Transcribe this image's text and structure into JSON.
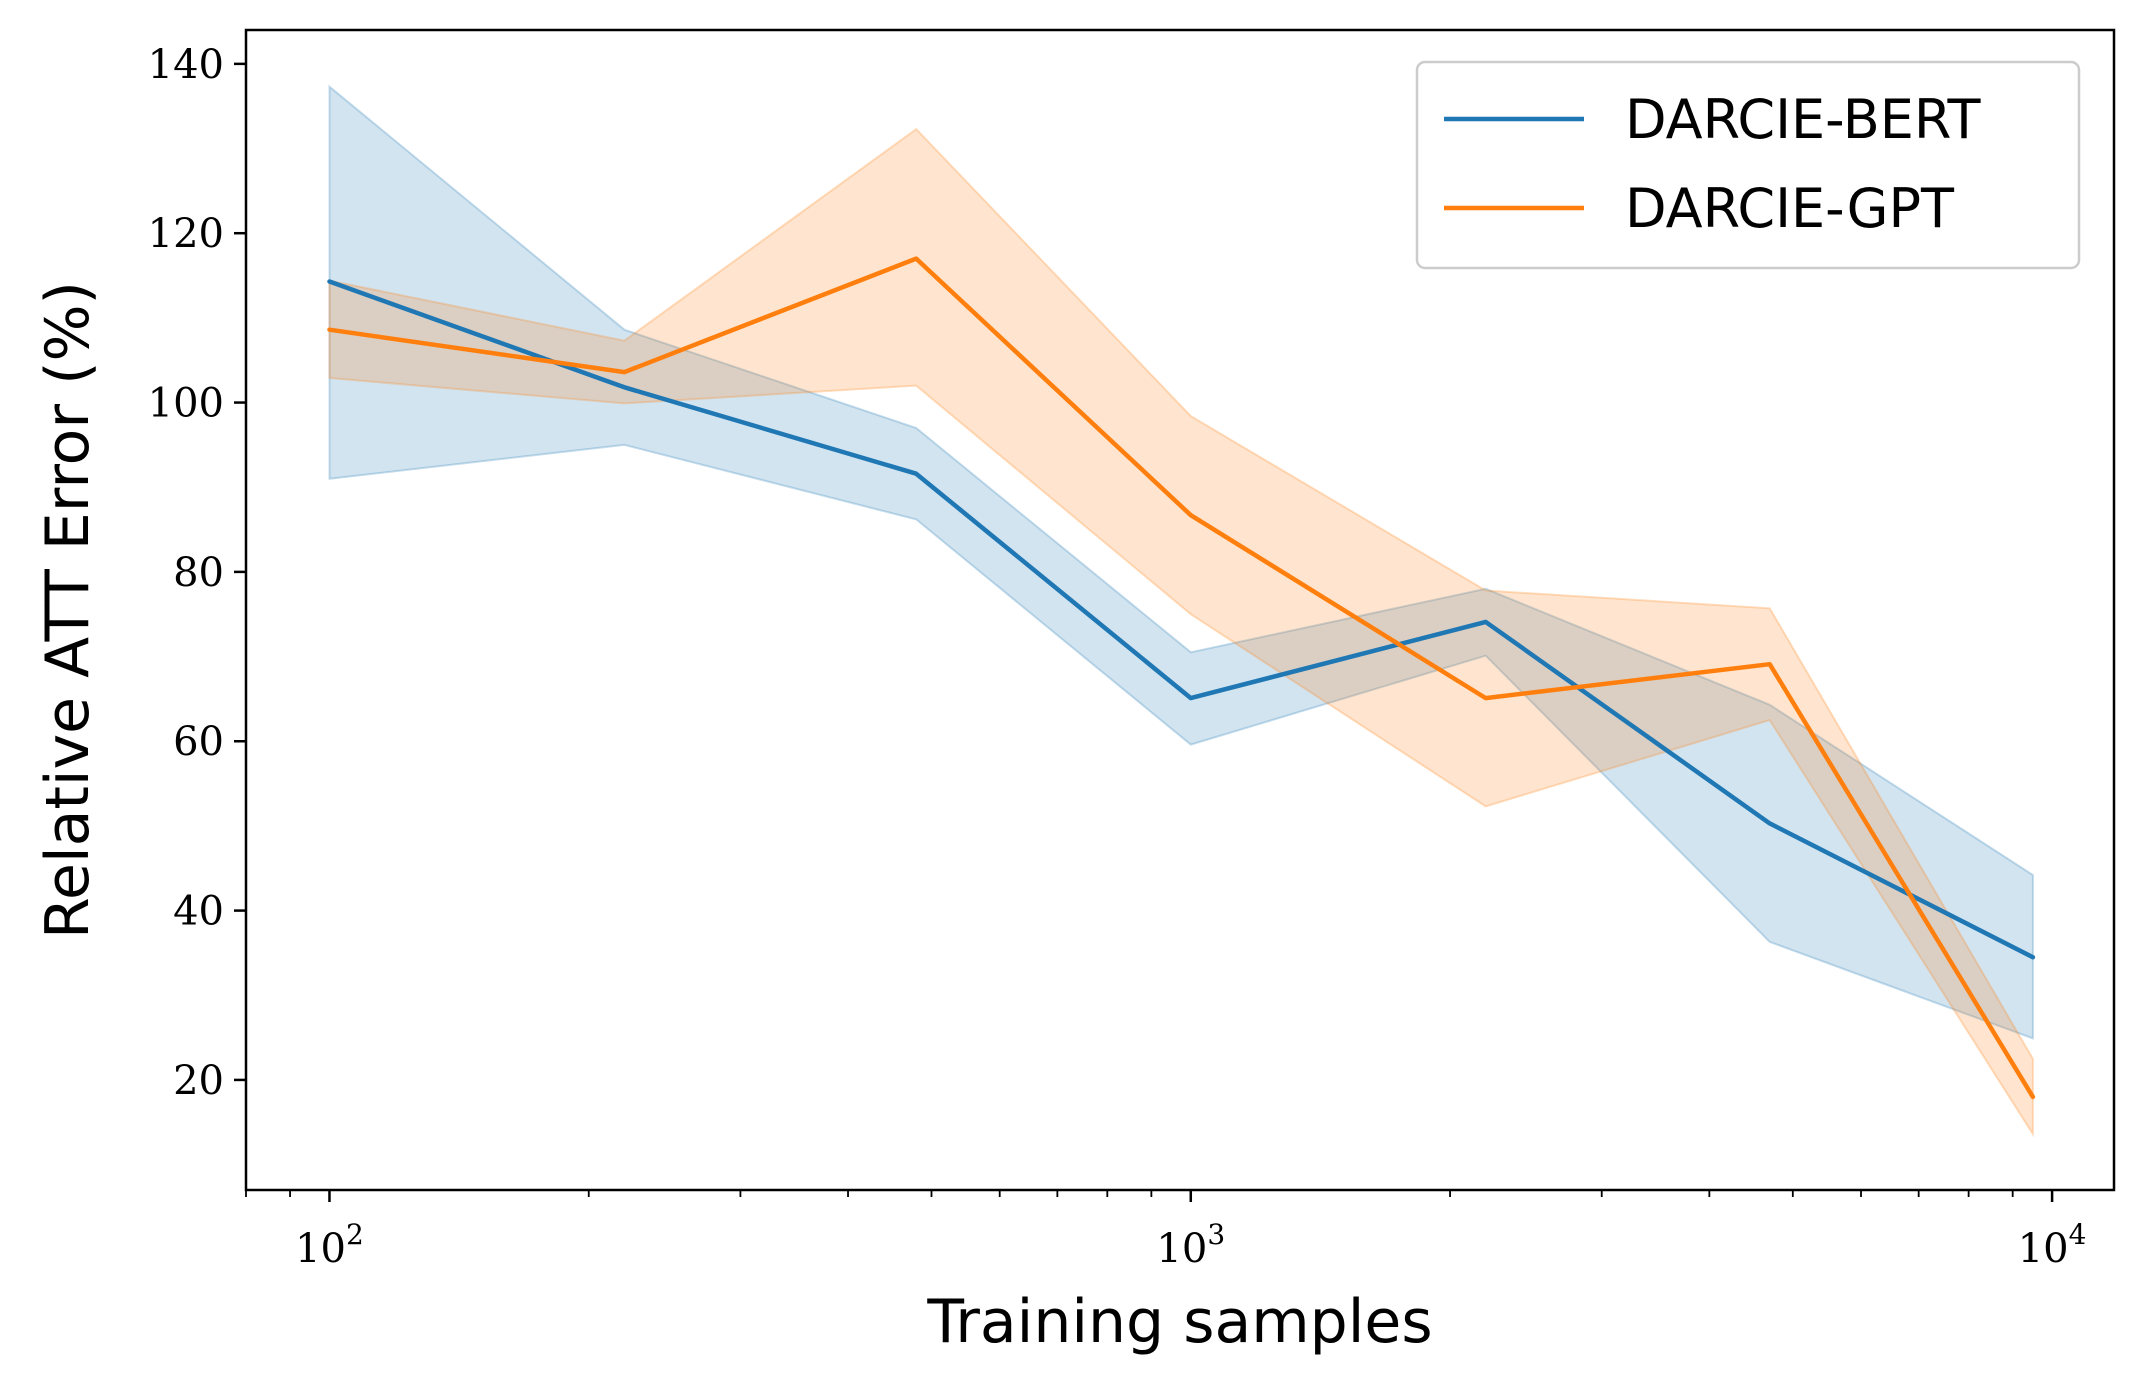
{
  "chart_data": {
    "type": "line",
    "title": "",
    "xlabel": "Training samples",
    "ylabel": "Relative ATT Error (%)",
    "xscale": "log",
    "xlim": [
      80,
      11800
    ],
    "ylim": [
      7,
      144
    ],
    "xticks": [
      {
        "value": 100,
        "base": "10",
        "exp": "2"
      },
      {
        "value": 1000,
        "base": "10",
        "exp": "3"
      },
      {
        "value": 10000,
        "base": "10",
        "exp": "4"
      }
    ],
    "yticks": [
      20,
      40,
      60,
      80,
      100,
      120,
      140
    ],
    "legend_position": "top-right",
    "x": [
      100,
      220,
      480,
      1000,
      2200,
      4700,
      9500
    ],
    "series": [
      {
        "name": "DARCIE-BERT",
        "color": "#1f77b4",
        "values": [
          114.3,
          101.8,
          91.6,
          65.1,
          74.1,
          50.3,
          34.5
        ],
        "lower": [
          91.0,
          95.0,
          86.2,
          59.6,
          70.1,
          36.3,
          24.9
        ],
        "upper": [
          137.3,
          108.6,
          97.0,
          70.5,
          78.0,
          64.3,
          44.2
        ]
      },
      {
        "name": "DARCIE-GPT",
        "color": "#ff7f0e",
        "values": [
          108.6,
          103.6,
          117.0,
          86.7,
          65.1,
          69.1,
          18.0
        ],
        "lower": [
          102.9,
          99.9,
          102.0,
          75.0,
          52.3,
          62.5,
          13.6
        ],
        "upper": [
          114.4,
          107.3,
          132.3,
          98.4,
          77.8,
          75.7,
          22.5
        ]
      }
    ]
  }
}
